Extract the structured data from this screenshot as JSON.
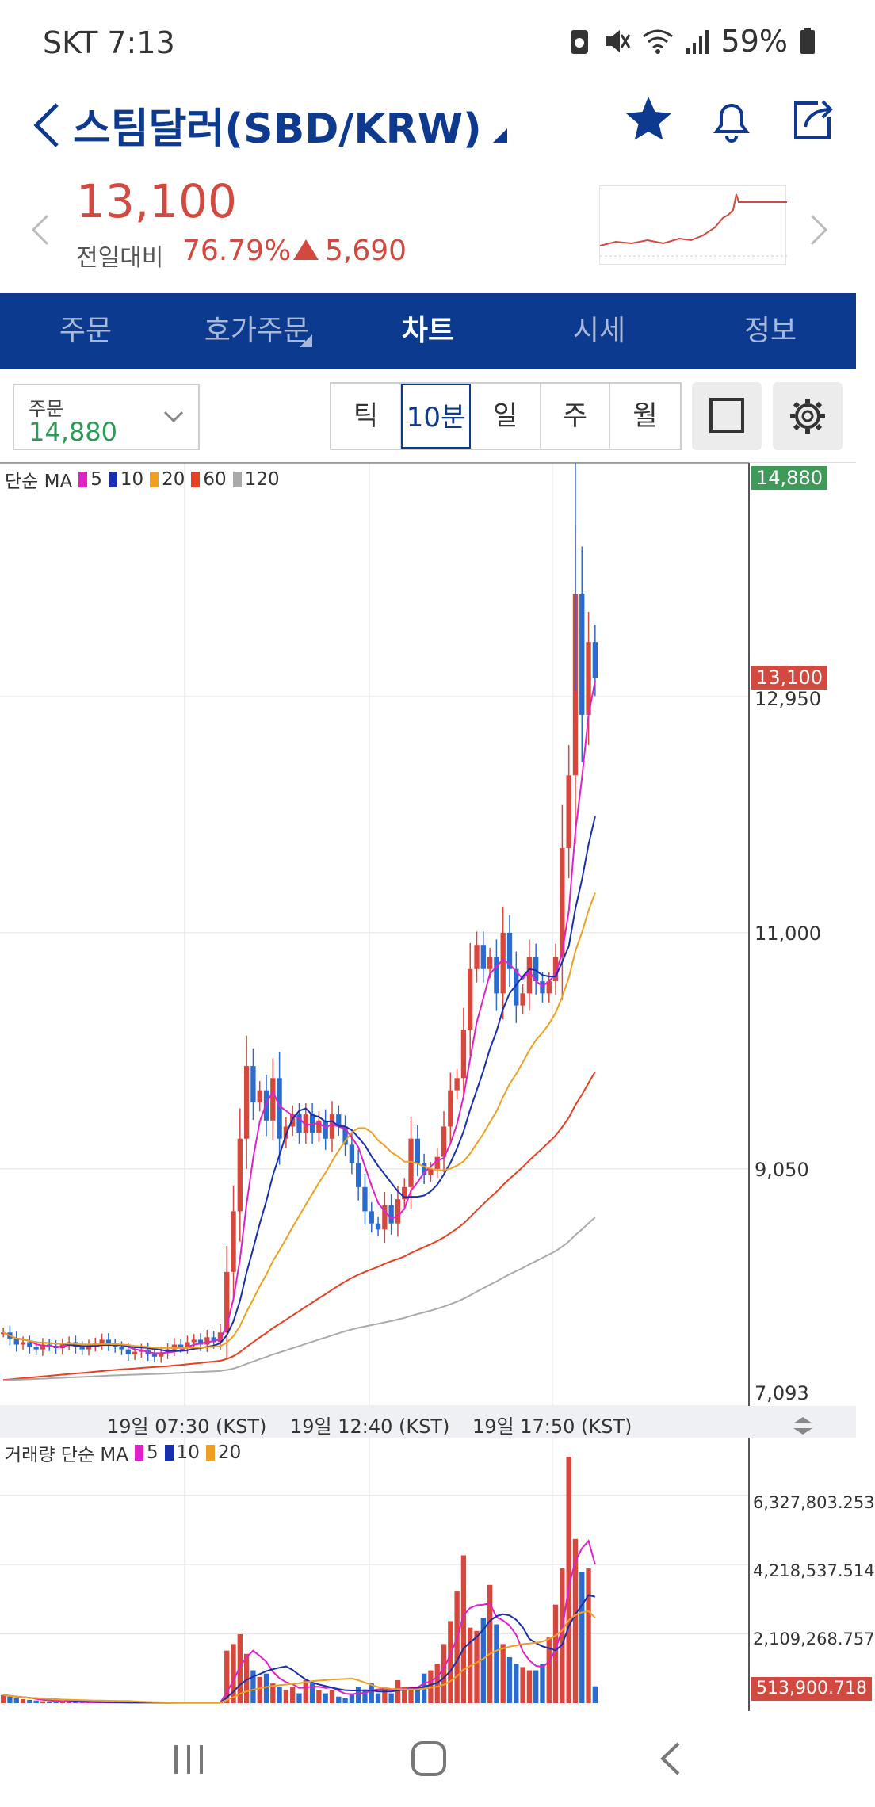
{
  "status_bar": {
    "carrier_time": "SKT 7:13",
    "battery": "59%"
  },
  "header": {
    "title": "스팀달러(SBD/KRW)"
  },
  "price": {
    "current": "13,100",
    "compare_label": "전일대비",
    "change_pct": "76.79%",
    "change_amount": "5,690"
  },
  "tabs": [
    "주문",
    "호가주문",
    "차트",
    "시세",
    "정보"
  ],
  "toolbar": {
    "order_label": "주문",
    "order_value": "14,880",
    "intervals": [
      "틱",
      "10분",
      "일",
      "주",
      "월"
    ],
    "selected_interval": "10분"
  },
  "chart": {
    "price_legend": {
      "title": "단순 MA",
      "items": [
        "5",
        "10",
        "20",
        "60",
        "120"
      ]
    },
    "volume_legend": {
      "title": "거래량 단순 MA",
      "items": [
        "5",
        "10",
        "20"
      ]
    },
    "colors": {
      "ma5": "#e020c8",
      "ma10": "#1830b0",
      "ma20": "#f0a020",
      "ma60": "#e84020",
      "ma120": "#aaaaaa",
      "up": "#d8473c",
      "down": "#2a6bd0"
    },
    "price_axis": [
      "12,950",
      "11,000",
      "9,050",
      "7,093"
    ],
    "price_tag_high": "14,880",
    "price_tag_current": "13,100",
    "volume_axis": [
      "6,327,803.253",
      "4,218,537.514",
      "2,109,268.757"
    ],
    "volume_tag": "513,900.718",
    "time_labels": [
      "19일 07:30 (KST)",
      "19일 12:40 (KST)",
      "19일 17:50 (KST)"
    ]
  },
  "chart_data": {
    "type": "candlestick",
    "interval": "10분",
    "ylim": [
      7093,
      14880
    ],
    "x_labels": [
      "19일 07:30 (KST)",
      "19일 12:40 (KST)",
      "19일 17:50 (KST)"
    ],
    "y_ticks": [
      7093,
      9050,
      11000,
      12950
    ],
    "current_price": 13100,
    "high_marker": 14880,
    "close": [
      7700,
      7650,
      7600,
      7620,
      7580,
      7560,
      7600,
      7590,
      7570,
      7600,
      7620,
      7580,
      7560,
      7590,
      7610,
      7640,
      7600,
      7580,
      7560,
      7520,
      7540,
      7560,
      7520,
      7500,
      7530,
      7560,
      7600,
      7580,
      7620,
      7640,
      7600,
      7660,
      7620,
      7700,
      8200,
      8700,
      9300,
      9900,
      9600,
      9700,
      9450,
      9800,
      9300,
      9400,
      9500,
      9350,
      9500,
      9350,
      9450,
      9300,
      9500,
      9400,
      9250,
      9100,
      8900,
      8700,
      8600,
      8550,
      8750,
      8600,
      8800,
      8900,
      9300,
      9100,
      9000,
      9050,
      9150,
      9400,
      9700,
      9800,
      10200,
      10700,
      10900,
      10700,
      10800,
      10500,
      11000,
      10700,
      10400,
      10500,
      10800,
      10600,
      10500,
      10600,
      10800,
      11700,
      12300,
      13800,
      12800,
      13400,
      13100
    ],
    "volume": [
      250000,
      200000,
      150000,
      120000,
      100000,
      80000,
      60000,
      50000,
      40000,
      40000,
      30000,
      30000,
      20000,
      20000,
      20000,
      20000,
      20000,
      15000,
      15000,
      15000,
      15000,
      15000,
      15000,
      15000,
      15000,
      15000,
      15000,
      15000,
      15000,
      15000,
      15000,
      15000,
      15000,
      20000,
      1600000,
      1800000,
      2100000,
      1500000,
      1000000,
      800000,
      900000,
      600000,
      500000,
      400000,
      500000,
      300000,
      700000,
      600000,
      400000,
      300000,
      400000,
      200000,
      150000,
      300000,
      500000,
      400000,
      600000,
      300000,
      400000,
      300000,
      700000,
      500000,
      500000,
      400000,
      900000,
      1000000,
      1200000,
      1800000,
      2500000,
      3400000,
      4500000,
      2300000,
      2200000,
      2600000,
      3600000,
      2400000,
      1800000,
      1400000,
      1200000,
      1100000,
      1000000,
      1000000,
      1200000,
      2000000,
      3000000,
      4100000,
      7500000,
      5000000,
      4000000,
      4100000,
      513900
    ]
  }
}
